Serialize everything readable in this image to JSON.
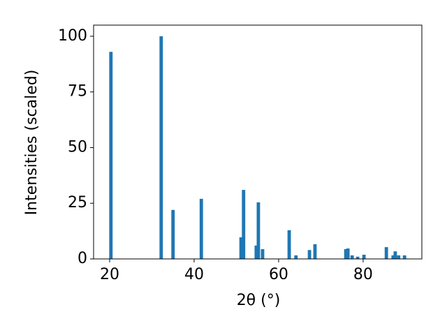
{
  "chart_data": {
    "type": "bar",
    "xlabel": "2θ (°)",
    "ylabel": "Intensities (scaled)",
    "color": "#1f77b4",
    "x": [
      20.3,
      32.2,
      35.0,
      41.7,
      51.1,
      51.7,
      54.7,
      55.2,
      56.2,
      62.5,
      64.1,
      67.3,
      68.6,
      75.9,
      76.4,
      77.4,
      78.7,
      80.2,
      85.5,
      87.1,
      87.6,
      88.4,
      89.8
    ],
    "values": [
      93,
      100,
      22,
      27,
      9.7,
      31,
      6,
      25.4,
      4.4,
      12.9,
      1.6,
      4,
      6.6,
      4.4,
      4.7,
      1.6,
      1,
      1.9,
      5.3,
      1.6,
      3.4,
      1.6,
      1.6
    ],
    "xlim": [
      16.2,
      93.9
    ],
    "ylim": [
      0,
      105
    ],
    "xticks": [
      20,
      40,
      60,
      80
    ],
    "yticks": [
      0,
      25,
      50,
      75,
      100
    ],
    "grid": false
  }
}
